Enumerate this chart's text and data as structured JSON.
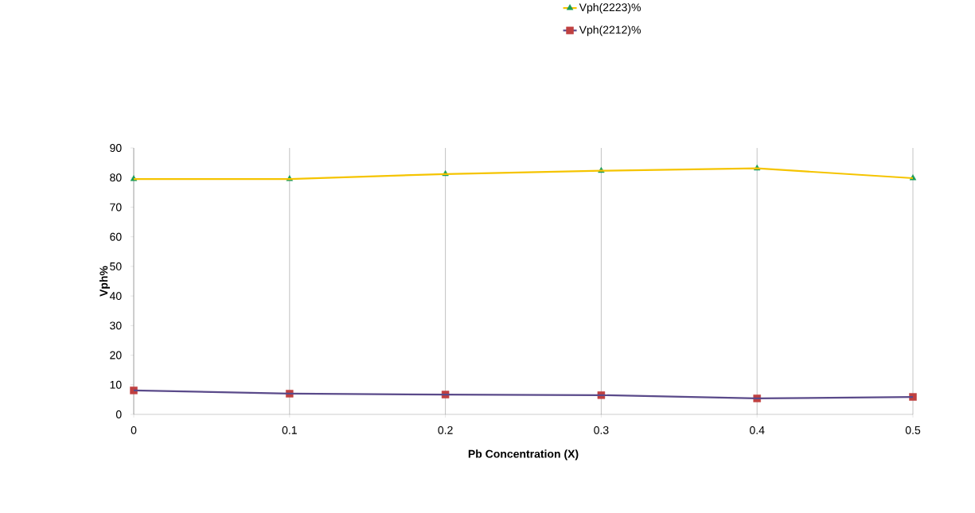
{
  "chart_data": {
    "type": "line",
    "xlabel": "Pb Concentration (X)",
    "ylabel": "Vph%",
    "x": [
      0,
      0.1,
      0.2,
      0.3,
      0.4,
      0.5
    ],
    "series": [
      {
        "name": "Vph(2223)%",
        "color": "#f5c400",
        "marker": "triangle",
        "values": [
          79.5,
          79.5,
          81.2,
          82.3,
          83.1,
          79.8
        ]
      },
      {
        "name": "Vph(2212)%",
        "color": "#5a4a8a",
        "marker": "square",
        "values": [
          8.1,
          7.0,
          6.7,
          6.5,
          5.4,
          5.9
        ]
      }
    ],
    "xlim": [
      0,
      0.5
    ],
    "xticks": [
      0,
      0.1,
      0.2,
      0.3,
      0.4,
      0.5
    ],
    "ylim": [
      0,
      90
    ],
    "yticks": [
      0,
      10,
      20,
      30,
      40,
      50,
      60,
      70,
      80,
      90
    ],
    "grid": "x",
    "legend": "top"
  }
}
